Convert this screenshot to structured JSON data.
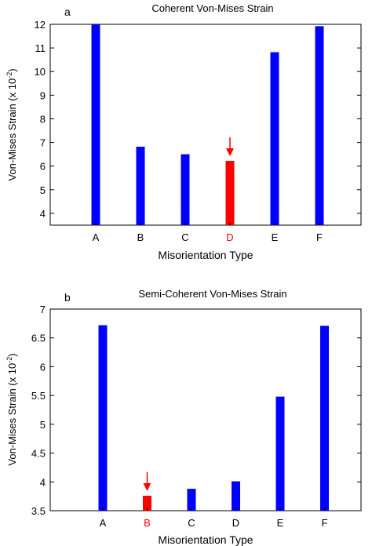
{
  "chart_data": [
    {
      "type": "bar",
      "panel_label": "a",
      "title": "Coherent Von-Mises Strain",
      "xlabel": "Misorientation Type",
      "ylabel_main": "Von-Mises Strain (x 10",
      "ylabel_sup": "-2",
      "ylabel_end": ")",
      "categories": [
        "A",
        "B",
        "C",
        "D",
        "E",
        "F"
      ],
      "values": [
        12.0,
        6.82,
        6.5,
        6.22,
        10.82,
        11.92
      ],
      "highlight_index": 3,
      "ylim": [
        3.5,
        12
      ],
      "yticks": [
        4,
        5,
        6,
        7,
        8,
        9,
        10,
        11,
        12
      ],
      "ytick_labels": [
        "4",
        "5",
        "6",
        "7",
        "8",
        "9",
        "10",
        "11",
        "12"
      ],
      "grid": false,
      "legend": "none",
      "colors": {
        "bar": "#0000ff",
        "highlight": "#ff0000",
        "arrow": "#ff0000"
      }
    },
    {
      "type": "bar",
      "panel_label": "b",
      "title": "Semi-Coherent Von-Mises Strain",
      "xlabel": "Misorientation Type",
      "ylabel_main": "Von-Mises Strain (x 10",
      "ylabel_sup": "-2",
      "ylabel_end": ")",
      "categories": [
        "A",
        "B",
        "C",
        "D",
        "E",
        "F"
      ],
      "values": [
        6.72,
        3.76,
        3.88,
        4.01,
        5.48,
        6.71
      ],
      "highlight_index": 1,
      "ylim": [
        3.5,
        7
      ],
      "yticks": [
        3.5,
        4,
        4.5,
        5,
        5.5,
        6,
        6.5,
        7
      ],
      "ytick_labels": [
        "3.5",
        "4",
        "4.5",
        "5",
        "5.5",
        "6",
        "6.5",
        "7"
      ],
      "grid": false,
      "legend": "none",
      "colors": {
        "bar": "#0000ff",
        "highlight": "#ff0000",
        "arrow": "#ff0000"
      }
    }
  ]
}
